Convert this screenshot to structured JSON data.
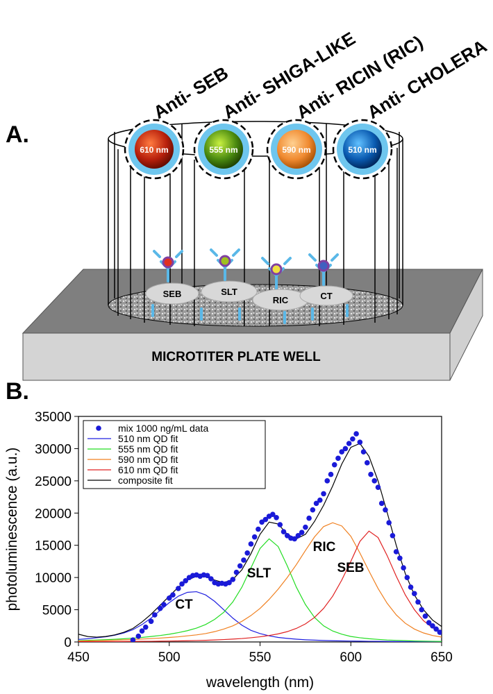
{
  "diagram": {
    "panel_a_label": "A.",
    "antibodies": [
      "Anti- SEB",
      "Anti- SHIGA-LIKE",
      "Anti- RICIN (RIC)",
      "Anti- CHOLERA"
    ],
    "quantum_dots": [
      "610 nm",
      "555 nm",
      "590 nm",
      "510 nm"
    ],
    "antigens": [
      "SEB",
      "SLT",
      "RIC",
      "CT"
    ],
    "plate_label": "MICROTITER PLATE WELL",
    "panel_b_label": "B."
  },
  "chart_data": {
    "type": "line",
    "xlabel": "wavelength (nm)",
    "ylabel": "photoluminescence (a.u.)",
    "xlim": [
      450,
      650
    ],
    "xticks": [
      450,
      500,
      550,
      600,
      650
    ],
    "ylim": [
      0,
      35000
    ],
    "yticks": [
      0,
      5000,
      10000,
      15000,
      20000,
      25000,
      30000,
      35000
    ],
    "grid": false,
    "legend": "upper left",
    "annotations": [
      "CT",
      "SLT",
      "RIC",
      "SEB"
    ],
    "x": [
      450,
      455,
      460,
      465,
      470,
      475,
      480,
      485,
      490,
      495,
      500,
      505,
      510,
      515,
      520,
      525,
      530,
      535,
      540,
      545,
      550,
      555,
      560,
      565,
      570,
      575,
      580,
      585,
      590,
      595,
      600,
      605,
      610,
      615,
      620,
      625,
      630,
      635,
      640,
      645,
      650
    ],
    "series": [
      {
        "name": "mix 1000 ng/mL data",
        "color": "#1a1ad8",
        "style": "markers",
        "x": [
          480,
          483,
          485,
          487,
          490,
          492,
          495,
          497,
          500,
          502,
          505,
          507,
          509,
          511,
          513,
          515,
          517,
          519,
          521,
          523,
          525,
          527,
          529,
          531,
          533,
          535,
          537,
          539,
          541,
          543,
          545,
          547,
          549,
          551,
          553,
          555,
          557,
          559,
          561,
          563,
          565,
          567,
          569,
          571,
          573,
          575,
          577,
          579,
          581,
          583,
          585,
          587,
          589,
          591,
          593,
          595,
          597,
          599,
          601,
          603,
          605,
          607,
          609,
          611,
          613,
          615,
          617,
          619,
          621,
          623,
          625,
          627,
          629,
          631,
          633,
          635,
          637,
          639,
          641,
          643,
          645,
          647,
          649
        ],
        "values": [
          300,
          900,
          1700,
          2300,
          3200,
          4200,
          5200,
          5800,
          6800,
          7300,
          8300,
          9000,
          9500,
          10000,
          10300,
          10400,
          10200,
          10400,
          10300,
          9800,
          9200,
          9000,
          9100,
          9000,
          9200,
          9700,
          10800,
          11800,
          12700,
          13800,
          15200,
          16300,
          17500,
          18600,
          19000,
          19500,
          19800,
          19300,
          18200,
          17100,
          16500,
          16100,
          16000,
          16500,
          17000,
          17800,
          19200,
          20500,
          21500,
          22000,
          23000,
          25000,
          26000,
          27500,
          28500,
          29500,
          30000,
          30800,
          31500,
          32300,
          31000,
          29500,
          27800,
          26000,
          25000,
          24000,
          21500,
          20500,
          18500,
          16500,
          14000,
          13000,
          11500,
          10000,
          8500,
          7500,
          6200,
          5000,
          4000,
          3000,
          2500,
          2000,
          1500
        ]
      },
      {
        "name": "510 nm QD fit",
        "color": "#2020e0",
        "style": "line",
        "values": [
          400,
          500,
          650,
          800,
          1050,
          1400,
          1900,
          2700,
          3700,
          4900,
          6100,
          7100,
          7700,
          7800,
          7300,
          6300,
          5000,
          3700,
          2600,
          1800,
          1300,
          950,
          700,
          550,
          430,
          340,
          280,
          230,
          190,
          160,
          140,
          120,
          100,
          90,
          80,
          70,
          60,
          50,
          45,
          40,
          35
        ]
      },
      {
        "name": "555 nm QD fit",
        "color": "#22dd22",
        "style": "line",
        "values": [
          200,
          250,
          300,
          350,
          420,
          500,
          600,
          700,
          850,
          1000,
          1200,
          1450,
          1750,
          2150,
          2700,
          3500,
          4600,
          6200,
          8500,
          11500,
          14500,
          16000,
          14800,
          11800,
          8500,
          5800,
          3800,
          2500,
          1700,
          1200,
          850,
          650,
          500,
          400,
          300,
          250,
          200,
          150,
          120,
          100,
          80
        ]
      },
      {
        "name": "590 nm QD fit",
        "color": "#f08020",
        "style": "line",
        "values": [
          150,
          170,
          200,
          230,
          270,
          320,
          380,
          450,
          520,
          600,
          700,
          800,
          950,
          1100,
          1300,
          1600,
          2000,
          2500,
          3200,
          4100,
          5200,
          6600,
          8200,
          10000,
          12000,
          14200,
          16300,
          17900,
          18500,
          18000,
          16400,
          13800,
          11000,
          8300,
          6000,
          4200,
          2900,
          2000,
          1400,
          1000,
          750
        ]
      },
      {
        "name": "610 nm QD fit",
        "color": "#e02020",
        "style": "line",
        "values": [
          40,
          45,
          50,
          55,
          60,
          70,
          80,
          90,
          100,
          120,
          140,
          160,
          190,
          220,
          260,
          310,
          370,
          440,
          530,
          650,
          800,
          1000,
          1250,
          1600,
          2100,
          2800,
          3800,
          5200,
          7100,
          9600,
          12500,
          15600,
          17200,
          16200,
          13400,
          10200,
          7300,
          5000,
          3300,
          2200,
          1500
        ]
      },
      {
        "name": "composite fit",
        "color": "#000000",
        "style": "line",
        "values": [
          1200,
          850,
          750,
          850,
          1100,
          1500,
          2100,
          3100,
          4300,
          5700,
          7100,
          8500,
          9600,
          10200,
          10100,
          9600,
          9200,
          9700,
          11200,
          13700,
          16700,
          18600,
          18300,
          16700,
          16000,
          16700,
          18700,
          21200,
          24200,
          27600,
          30200,
          30800,
          28800,
          25000,
          20100,
          15000,
          10600,
          7300,
          5000,
          3400,
          2400
        ]
      }
    ]
  }
}
